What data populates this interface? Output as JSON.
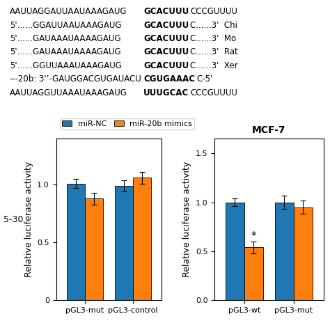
{
  "chart_data": [
    {
      "type": "bar",
      "categories": [
        "pGL3-mut",
        "pGL3-control"
      ],
      "series": [
        {
          "name": "miR-NC",
          "values": [
            1.01,
            0.99
          ],
          "errors": [
            0.04,
            0.05
          ]
        },
        {
          "name": "miR-20b mimics",
          "values": [
            0.88,
            1.06
          ],
          "errors": [
            0.05,
            0.05
          ]
        }
      ],
      "ylabel": "Relative luciferase activity",
      "ylim": [
        0,
        1.4
      ],
      "yticks": [
        0,
        0.5,
        1.0
      ],
      "legend": "upper left",
      "annotations": [
        {
          "text": "5-30"
        },
        {
          "segments": [
            "AAUUAGGAUUAAUAAAGAUG",
            "GCACUUU",
            "CCCGUUUU"
          ]
        },
        {
          "segments": [
            "5'......GGAUUAAUAAAGAUG",
            "GCACUUU",
            "C......3'  Chi"
          ]
        },
        {
          "segments": [
            "5'......GAUAAAUAAAAGAUG",
            "GCACUUU",
            "C......3'  Mo"
          ]
        },
        {
          "segments": [
            "5'......GAUAAAUAAAAGAUG",
            "GCACUUU",
            "C......3'  Rat"
          ]
        },
        {
          "segments": [
            "5'......GGUUAAAUAAAGAUG",
            "GCACUUU",
            "C......3'  Xer"
          ]
        },
        {
          "segments": [
            "‒-20b: 3'’-GAUGGACGUGAUACU",
            "CGUGAAAC",
            "C-5'"
          ]
        },
        {
          "segments": [
            "AAUUAGGUUAAAUAAAGAUG",
            "UUUGCAC",
            "CCCGUUUU"
          ]
        }
      ]
    },
    {
      "type": "bar",
      "title": "MCF-7",
      "categories": [
        "pGL3-wt",
        "pGL3-mut"
      ],
      "series": [
        {
          "name": "miR-NC",
          "values": [
            1.0,
            1.0
          ],
          "errors": [
            0.04,
            0.07
          ]
        },
        {
          "name": "miR-20b mimics",
          "values": [
            0.54,
            0.95
          ],
          "errors": [
            0.06,
            0.07
          ]
        }
      ],
      "ylabel": "Relative luciferase activity",
      "ylim": [
        0,
        1.65
      ],
      "yticks": [
        0.0,
        0.5,
        1.0,
        1.5
      ],
      "annotations": [
        {
          "text": "*",
          "category": "pGL3-wt",
          "series": "miR-20b mimics"
        }
      ]
    }
  ]
}
